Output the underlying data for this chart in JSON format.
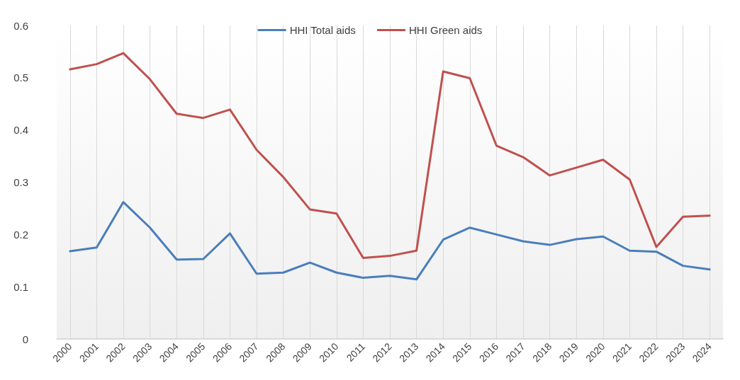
{
  "chart_data": {
    "type": "line",
    "categories": [
      "2000",
      "2001",
      "2002",
      "2003",
      "2004",
      "2005",
      "2006",
      "2007",
      "2008",
      "2009",
      "2010",
      "2011",
      "2012",
      "2013",
      "2014",
      "2015",
      "2016",
      "2017",
      "2018",
      "2019",
      "2020",
      "2021",
      "2022",
      "2023",
      "2024"
    ],
    "series": [
      {
        "name": "HHI Total aids",
        "color": "#4a7ebb",
        "values": [
          0.168,
          0.175,
          0.262,
          0.213,
          0.152,
          0.153,
          0.202,
          0.125,
          0.127,
          0.146,
          0.127,
          0.117,
          0.121,
          0.114,
          0.19,
          0.213,
          0.2,
          0.187,
          0.18,
          0.191,
          0.196,
          0.169,
          0.167,
          0.14,
          0.133
        ]
      },
      {
        "name": "HHI Green aids",
        "color": "#c0504d",
        "values": [
          0.516,
          0.526,
          0.547,
          0.497,
          0.431,
          0.423,
          0.439,
          0.362,
          0.31,
          0.248,
          0.24,
          0.155,
          0.159,
          0.169,
          0.512,
          0.499,
          0.37,
          0.348,
          0.313,
          0.328,
          0.343,
          0.305,
          0.176,
          0.234,
          0.236
        ]
      }
    ],
    "ylim": [
      0,
      0.6
    ],
    "yticks": [
      0,
      0.1,
      0.2,
      0.3,
      0.4,
      0.5,
      0.6
    ],
    "grid": "x",
    "legend": "top",
    "marker": "none",
    "line_style": "solid"
  }
}
